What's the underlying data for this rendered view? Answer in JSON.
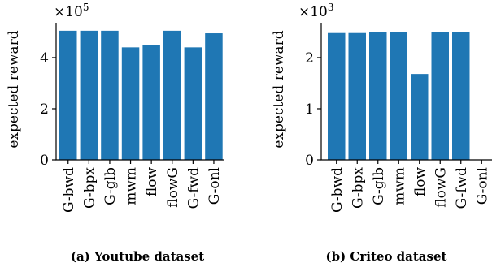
{
  "chart_data": [
    {
      "type": "bar",
      "categories": [
        "G-bwd",
        "G-bpx",
        "G-glb",
        "mwm",
        "flow",
        "flowG",
        "G-fwd",
        "G-onl"
      ],
      "values": [
        5.05,
        5.05,
        5.05,
        4.4,
        4.5,
        5.05,
        4.4,
        4.95
      ],
      "ylabel": "expected reward",
      "multiplier_base": "×10",
      "multiplier_exp": "5",
      "yticks": [
        0,
        2,
        4
      ],
      "ylim": [
        0,
        5.3
      ],
      "grid": false,
      "caption": "(a) Youtube dataset"
    },
    {
      "type": "bar",
      "categories": [
        "G-bwd",
        "G-bpx",
        "G-glb",
        "mwm",
        "flow",
        "flowG",
        "G-fwd",
        "G-onl"
      ],
      "values": [
        2.48,
        2.48,
        2.5,
        2.5,
        1.68,
        2.5,
        2.5,
        0
      ],
      "ylabel": "expected reward",
      "multiplier_base": "×10",
      "multiplier_exp": "3",
      "yticks": [
        0,
        1,
        2
      ],
      "ylim": [
        0,
        2.65
      ],
      "grid": false,
      "caption": "(b) Criteo dataset"
    }
  ]
}
